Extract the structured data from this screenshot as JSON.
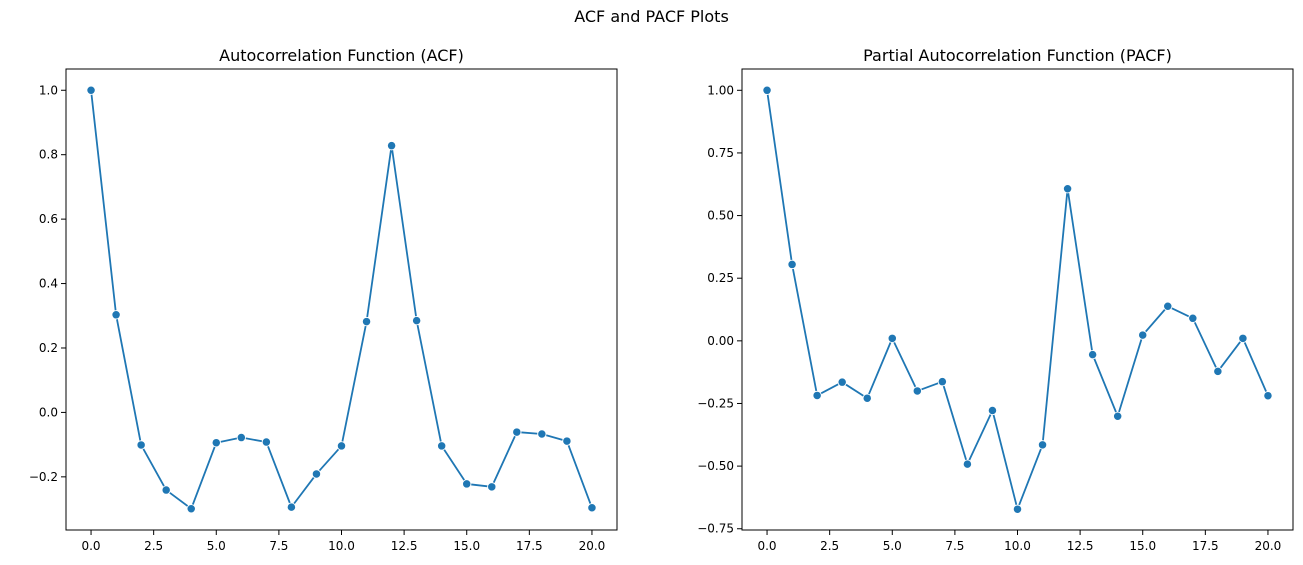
{
  "suptitle": "ACF and PACF Plots",
  "colors": {
    "line": "#1f77b4",
    "marker_edge": "#ffffff",
    "axis": "#000000"
  },
  "chart_data": [
    {
      "type": "line",
      "title": "Autocorrelation Function (ACF)",
      "xlabel": "",
      "ylabel": "",
      "markers": true,
      "grid": false,
      "xlim": [
        -1,
        21
      ],
      "ylim": [
        -0.365,
        1.066
      ],
      "xticks": [
        0,
        2.5,
        5,
        7.5,
        10,
        12.5,
        15,
        17.5,
        20
      ],
      "xtick_labels": [
        "0.0",
        "2.5",
        "5.0",
        "7.5",
        "10.0",
        "12.5",
        "15.0",
        "17.5",
        "20.0"
      ],
      "yticks": [
        -0.2,
        0,
        0.2,
        0.4,
        0.6,
        0.8,
        1.0
      ],
      "ytick_labels": [
        "−0.2",
        "0.0",
        "0.2",
        "0.4",
        "0.6",
        "0.8",
        "1.0"
      ],
      "x": [
        0,
        1,
        2,
        3,
        4,
        5,
        6,
        7,
        8,
        9,
        10,
        11,
        12,
        13,
        14,
        15,
        16,
        17,
        18,
        19,
        20
      ],
      "values": [
        1.0,
        0.303,
        -0.101,
        -0.241,
        -0.299,
        -0.094,
        -0.078,
        -0.092,
        -0.294,
        -0.191,
        -0.104,
        0.282,
        0.828,
        0.285,
        -0.104,
        -0.222,
        -0.231,
        -0.061,
        -0.067,
        -0.089,
        -0.296
      ]
    },
    {
      "type": "line",
      "title": "Partial Autocorrelation Function (PACF)",
      "xlabel": "",
      "ylabel": "",
      "markers": true,
      "grid": false,
      "xlim": [
        -1,
        21
      ],
      "ylim": [
        -0.755,
        1.085
      ],
      "xticks": [
        0,
        2.5,
        5,
        7.5,
        10,
        12.5,
        15,
        17.5,
        20
      ],
      "xtick_labels": [
        "0.0",
        "2.5",
        "5.0",
        "7.5",
        "10.0",
        "12.5",
        "15.0",
        "17.5",
        "20.0"
      ],
      "yticks": [
        -0.75,
        -0.5,
        -0.25,
        0,
        0.25,
        0.5,
        0.75,
        1.0
      ],
      "ytick_labels": [
        "−0.75",
        "−0.50",
        "−0.25",
        "0.00",
        "0.25",
        "0.50",
        "0.75",
        "1.00"
      ],
      "x": [
        0,
        1,
        2,
        3,
        4,
        5,
        6,
        7,
        8,
        9,
        10,
        11,
        12,
        13,
        14,
        15,
        16,
        17,
        18,
        19,
        20
      ],
      "values": [
        1.0,
        0.305,
        -0.218,
        -0.165,
        -0.229,
        0.01,
        -0.2,
        -0.163,
        -0.492,
        -0.278,
        -0.672,
        -0.415,
        0.607,
        -0.055,
        -0.301,
        0.023,
        0.138,
        0.09,
        -0.122,
        0.01,
        -0.219
      ]
    }
  ]
}
